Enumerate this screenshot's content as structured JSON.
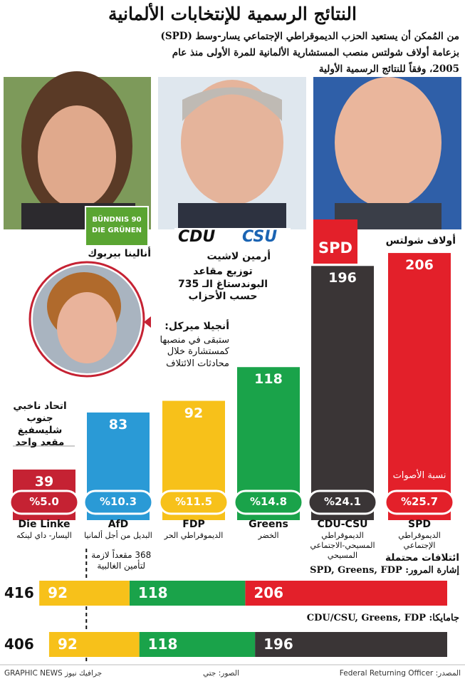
{
  "header": {
    "title": "النتائج الرسمية للإنتخابات الألمانية",
    "subtitle": [
      "من المُمكن أن يستعيد الحزب الديموقراطي الإجتماعي يسار-وسط (SPD)",
      "بزعامة أولاف شولتس منصب المستشارية الألمانية للمرة الأولى منذ عام",
      "2005، وفقاً للنتائج الرسمية الأولية"
    ]
  },
  "people": {
    "baerbock": "أنالينا بيربوك",
    "laschet": "أرمين لاشيت",
    "scholz": "أولاف شولتس",
    "merkel": {
      "name": "أنجيلا ميركل:",
      "note": "ستبقى في منصبها كمستشارة خلال محادثات الائتلاف"
    }
  },
  "logos": {
    "greens": [
      "BÜNDNIS 90",
      "DIE GRÜNEN"
    ],
    "cdu": "CDU",
    "csu": "CSU",
    "spd": "SPD"
  },
  "chart_data": {
    "type": "bar",
    "title": "توزيع مقاعد البوندستاغ الـ 735 حسب الأحزاب",
    "categories": [
      "SPD",
      "CDU-CSU",
      "Greens",
      "FDP",
      "AfD",
      "Die Linke"
    ],
    "category_notes": [
      "الديموقراطي الإجتماعي",
      "الديموقراطي المسيحي-الاجتماعي المسيحي",
      "الخضر",
      "الديموقراطي الحر",
      "البديل من أجل ألمانيا",
      "اليسار- داي لينكه"
    ],
    "values": [
      206,
      196,
      118,
      92,
      83,
      39
    ],
    "colors": [
      "#e3202a",
      "#3a3536",
      "#1aa34a",
      "#f7c11a",
      "#2a9ad6",
      "#c52233"
    ],
    "vote_share": {
      "name": "نسبة الأصوات",
      "values": [
        25.7,
        24.1,
        14.8,
        11.5,
        10.3,
        5.0
      ],
      "value_labels": [
        "%25.7",
        "%24.1",
        "%14.8",
        "%11.5",
        "%10.3",
        "%5.0"
      ]
    },
    "annotation": "اتحاد ناخبي جنوب شليسفيغ مقعد واحد"
  },
  "coalitions": {
    "title": "ائتلافات محتملة",
    "majority": {
      "value": 368,
      "label": "368 مقعداً لازمة لتأمين الغالبية"
    },
    "items": [
      {
        "label": "إشارة المرور: SPD, Greens, FDP",
        "total": 416,
        "segments": [
          {
            "value": 206,
            "color": "#e3202a"
          },
          {
            "value": 118,
            "color": "#1aa34a"
          },
          {
            "value": 92,
            "color": "#f7c11a"
          }
        ]
      },
      {
        "label": "جامايكا: CDU/CSU, Greens, FDP",
        "total": 406,
        "segments": [
          {
            "value": 196,
            "color": "#3a3536"
          },
          {
            "value": 118,
            "color": "#1aa34a"
          },
          {
            "value": 92,
            "color": "#f7c11a"
          }
        ]
      }
    ]
  },
  "footer": {
    "source": "المصدر: Federal Returning Officer",
    "photos": "الصور: جتي",
    "brand": "GRAPHIC NEWS جرافيك نيوز"
  }
}
